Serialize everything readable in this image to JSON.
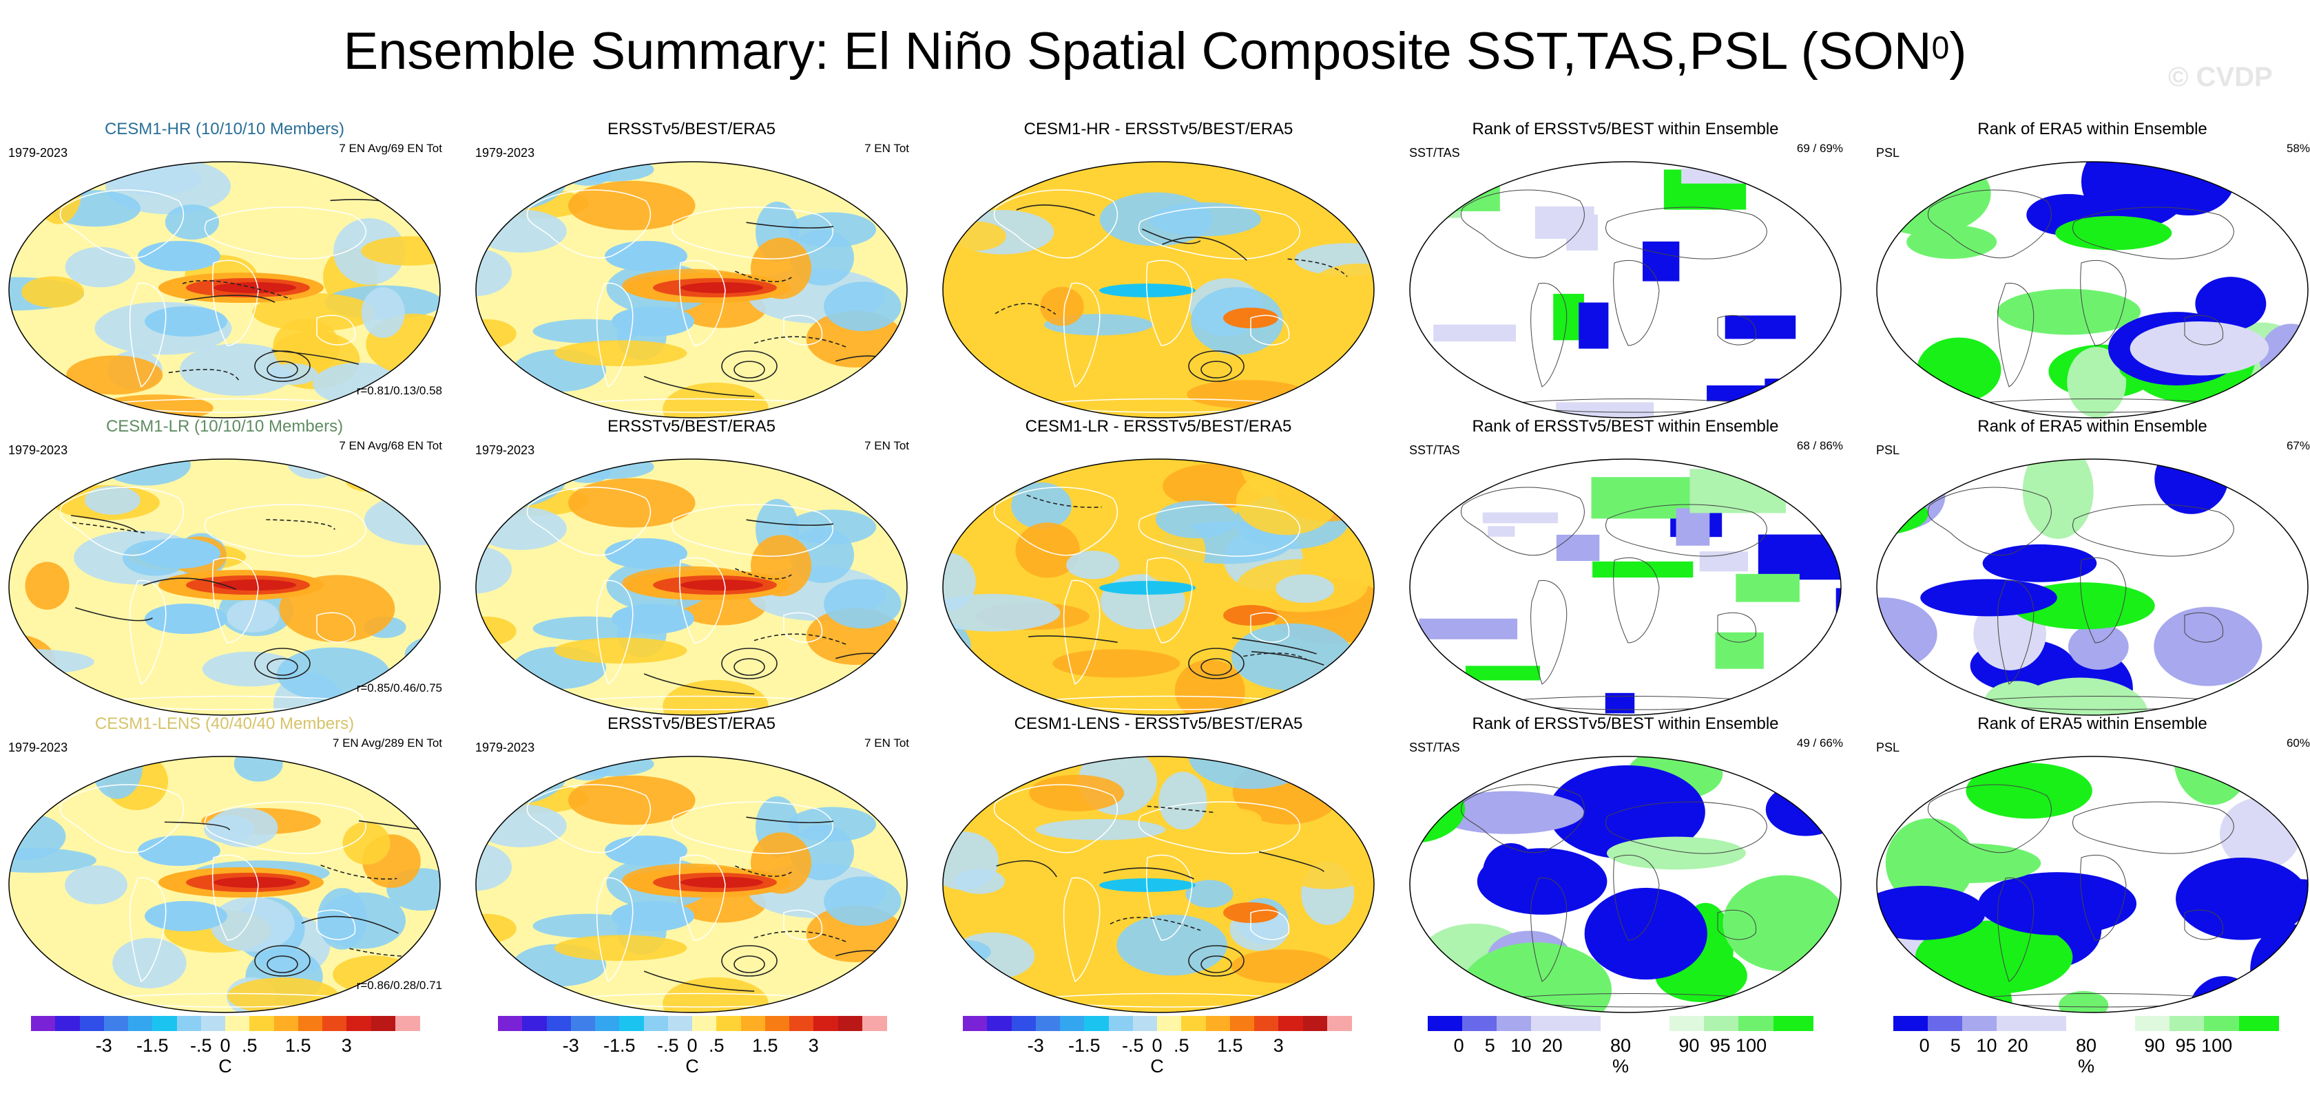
{
  "title_main": "Ensemble Summary: El Niño Spatial Composite SST,TAS,PSL (SON",
  "title_sup": "0",
  "title_close": ")",
  "watermark": "© CVDP",
  "rows": [
    {
      "model": {
        "title": "CESM1-HR (10/10/10 Members)",
        "title_color": "#2a6f97",
        "left_note": "1979-2023",
        "right_note": "7 EN Avg/69 EN Tot",
        "corner_note": "r=0.81/0.13/0.58"
      },
      "obs": {
        "title": "ERSSTv5/BEST/ERA5",
        "left_note": "1979-2023",
        "right_note": "7 EN Tot"
      },
      "diff": {
        "title": "CESM1-HR - ERSSTv5/BEST/ERA5"
      },
      "rank_sst": {
        "title": "Rank of ERSSTv5/BEST within Ensemble",
        "left_note": "SST/TAS",
        "right_note": "69 /  69%"
      },
      "rank_psl": {
        "title": "Rank of ERA5 within Ensemble",
        "left_note": "PSL",
        "right_note": "58%"
      }
    },
    {
      "model": {
        "title": "CESM1-LR (10/10/10 Members)",
        "title_color": "#5e8c61",
        "left_note": "1979-2023",
        "right_note": "7 EN Avg/68 EN Tot",
        "corner_note": "r=0.85/0.46/0.75"
      },
      "obs": {
        "title": "ERSSTv5/BEST/ERA5",
        "left_note": "1979-2023",
        "right_note": "7 EN Tot"
      },
      "diff": {
        "title": "CESM1-LR - ERSSTv5/BEST/ERA5"
      },
      "rank_sst": {
        "title": "Rank of ERSSTv5/BEST within Ensemble",
        "left_note": "SST/TAS",
        "right_note": "68 /  86%"
      },
      "rank_psl": {
        "title": "Rank of ERA5 within Ensemble",
        "left_note": "PSL",
        "right_note": "67%"
      }
    },
    {
      "model": {
        "title": "CESM1-LENS (40/40/40 Members)",
        "title_color": "#d6c36a",
        "left_note": "1979-2023",
        "right_note": "7 EN Avg/289 EN Tot",
        "corner_note": "r=0.86/0.28/0.71"
      },
      "obs": {
        "title": "ERSSTv5/BEST/ERA5",
        "left_note": "1979-2023",
        "right_note": "7 EN Tot"
      },
      "diff": {
        "title": "CESM1-LENS - ERSSTv5/BEST/ERA5"
      },
      "rank_sst": {
        "title": "Rank of ERSSTv5/BEST within Ensemble",
        "left_note": "SST/TAS",
        "right_note": "49 /  66%"
      },
      "rank_psl": {
        "title": "Rank of ERA5 within Ensemble",
        "left_note": "PSL",
        "right_note": "60%"
      }
    }
  ],
  "colorbar_temp": {
    "unit": "C",
    "colors": [
      "#7a22d6",
      "#3b1fe0",
      "#2f4fe8",
      "#3f7fea",
      "#33a6ef",
      "#1bc4f0",
      "#8ccff4",
      "#b9def3",
      "#fff7a6",
      "#ffd335",
      "#ffad22",
      "#f77c13",
      "#eb4a17",
      "#d51e14",
      "#ba1717",
      "#f7a7a7"
    ],
    "tick_labels": [
      "-3",
      "-1.5",
      "-.5",
      "0",
      ".5",
      "1.5",
      "3"
    ]
  },
  "colorbar_rank": {
    "unit": "%",
    "colors": [
      "#0c0ce8",
      "#6868ea",
      "#a8a8ee",
      "#dadaf6",
      "#ffffff",
      "#dff9df",
      "#aef3ae",
      "#6ef26e",
      "#18f018"
    ],
    "tick_labels": [
      "0",
      "5",
      "10",
      "20",
      "80",
      "90",
      "95",
      "100"
    ]
  },
  "chart_data": {
    "type": "heatmap",
    "layout": "3 rows x 5 columns of global map panels with contour overlays",
    "temperature_colorbar_ticks": [
      -3,
      -1.5,
      -0.5,
      0,
      0.5,
      1.5,
      3
    ],
    "temperature_colorbar_unit": "C",
    "rank_colorbar_ticks": [
      0,
      5,
      10,
      20,
      80,
      90,
      95,
      100
    ],
    "rank_colorbar_unit": "%",
    "panels": [
      {
        "row": 1,
        "model": "CESM1-HR",
        "members": "10/10/10",
        "period": "1979-2023",
        "en_avg": 7,
        "en_tot": 69,
        "pattern_correlation": [
          0.81,
          0.13,
          0.58
        ],
        "rank_sst_tas": [
          69,
          69
        ],
        "rank_psl": 58
      },
      {
        "row": 2,
        "model": "CESM1-LR",
        "members": "10/10/10",
        "period": "1979-2023",
        "en_avg": 7,
        "en_tot": 68,
        "pattern_correlation": [
          0.85,
          0.46,
          0.75
        ],
        "rank_sst_tas": [
          68,
          86
        ],
        "rank_psl": 67
      },
      {
        "row": 3,
        "model": "CESM1-LENS",
        "members": "40/40/40",
        "period": "1979-2023",
        "en_avg": 7,
        "en_tot": 289,
        "pattern_correlation": [
          0.86,
          0.28,
          0.71
        ],
        "rank_sst_tas": [
          49,
          66
        ],
        "rank_psl": 60
      }
    ],
    "observations": {
      "name": "ERSSTv5/BEST/ERA5",
      "period": "1979-2023",
      "en_tot": 7
    }
  }
}
